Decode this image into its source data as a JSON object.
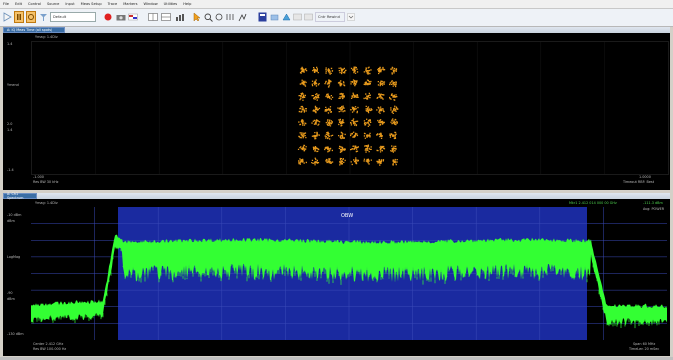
{
  "menu": [
    "File",
    "Edit",
    "Control",
    "Source",
    "Input",
    "Meas Setup",
    "Trace",
    "Markers",
    "Window",
    "Utilities",
    "Help"
  ],
  "toolbar": {
    "preset_label": "Default",
    "center_field": "Cntr Rewind"
  },
  "window_constellation": {
    "tab_label": "A: IQ Meas Time (all spots)",
    "ref_label": "Ymag: 1.4Div",
    "y_labels": [
      "1.4",
      "Ymend",
      "2.0",
      "1.4",
      "-1.4"
    ],
    "x_left_label": "-1.000",
    "x_left_sub": "Res BW 30 kHz",
    "x_right_label": "1.0000",
    "x_right_sub": "Timeout RBF: Best"
  },
  "window_spectrum": {
    "tab_label": "A: Ch1 Spectrum",
    "ref_label": "Ymag: 1.4Div",
    "marker_readout": "Mkr1  2.412 014 000 00 GHz",
    "marker_value": "-111.3 dBm",
    "avg_label": "Avg: POWER",
    "obw_label": "OBW",
    "y_labels": [
      "-10 dBm",
      "dBm",
      "LogMag",
      "-90",
      "dBm",
      "-130 dBm"
    ],
    "center_label": "Center 2.412 GHz",
    "res_label": "Res BW 100.000 Hz",
    "span_label": "Span 60 MHz",
    "time_label": "TimeLen 20 mSec"
  },
  "colors": {
    "constellation_point": "#e89a1c",
    "spectrum_trace": "#33ff33",
    "obw_fill": "#1a2aa0",
    "background": "#000000"
  },
  "icons": [
    "play-icon",
    "pause-icon",
    "restart-icon",
    "preset-icon",
    "record-icon",
    "camera-icon",
    "flag-icon",
    "layout-icon",
    "zoom-icon",
    "marker-icon",
    "autoscale-icon",
    "bookmark-icon",
    "settings-icon"
  ]
}
